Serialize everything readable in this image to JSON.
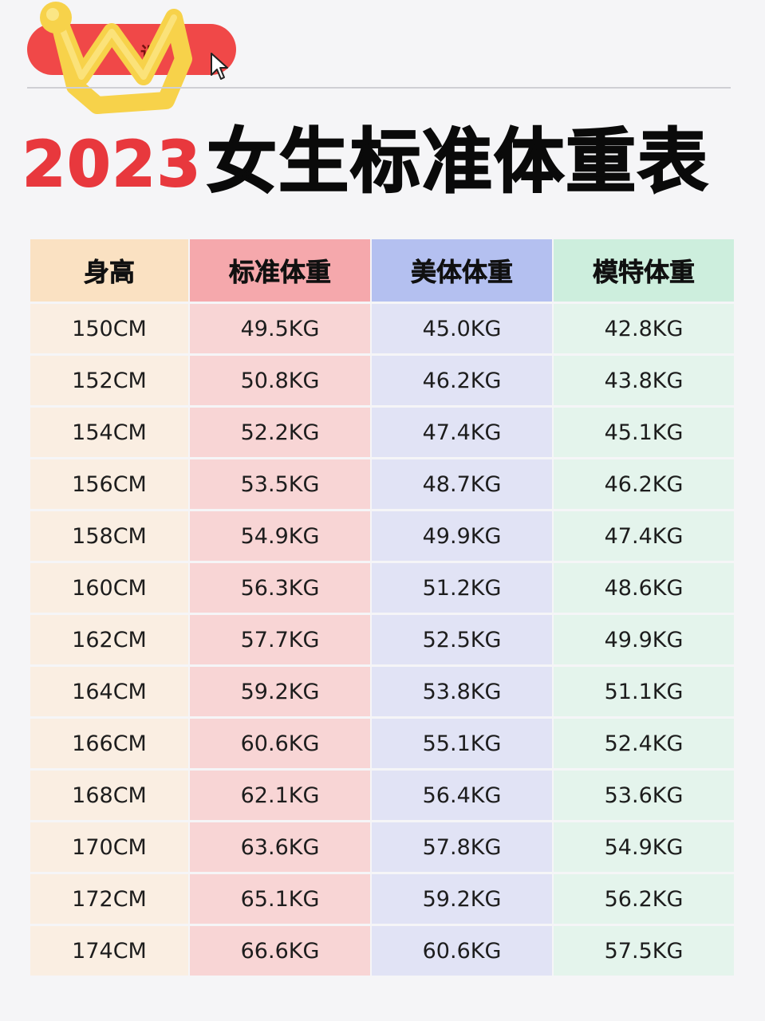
{
  "badge": {
    "text": "小课"
  },
  "title": {
    "year": "2023",
    "main": "女生标准体重表"
  },
  "table": {
    "headers": [
      "身高",
      "标准体重",
      "美体体重",
      "模特体重"
    ],
    "rows": [
      [
        "150CM",
        "49.5KG",
        "45.0KG",
        "42.8KG"
      ],
      [
        "152CM",
        "50.8KG",
        "46.2KG",
        "43.8KG"
      ],
      [
        "154CM",
        "52.2KG",
        "47.4KG",
        "45.1KG"
      ],
      [
        "156CM",
        "53.5KG",
        "48.7KG",
        "46.2KG"
      ],
      [
        "158CM",
        "54.9KG",
        "49.9KG",
        "47.4KG"
      ],
      [
        "160CM",
        "56.3KG",
        "51.2KG",
        "48.6KG"
      ],
      [
        "162CM",
        "57.7KG",
        "52.5KG",
        "49.9KG"
      ],
      [
        "164CM",
        "59.2KG",
        "53.8KG",
        "51.1KG"
      ],
      [
        "166CM",
        "60.6KG",
        "55.1KG",
        "52.4KG"
      ],
      [
        "168CM",
        "62.1KG",
        "56.4KG",
        "53.6KG"
      ],
      [
        "170CM",
        "63.6KG",
        "57.8KG",
        "54.9KG"
      ],
      [
        "172CM",
        "65.1KG",
        "59.2KG",
        "56.2KG"
      ],
      [
        "174CM",
        "66.6KG",
        "60.6KG",
        "57.5KG"
      ]
    ]
  },
  "colors": {
    "title_year": "#e8383d",
    "badge_red": "#f04848",
    "crown_yellow": "#f7d24a",
    "height_header": "#fae1c2",
    "standard_header": "#f5a8ac",
    "body_header": "#b4c0f0",
    "model_header": "#cdeedd"
  },
  "icons": [
    "crown-icon",
    "cursor-arrow-icon"
  ]
}
